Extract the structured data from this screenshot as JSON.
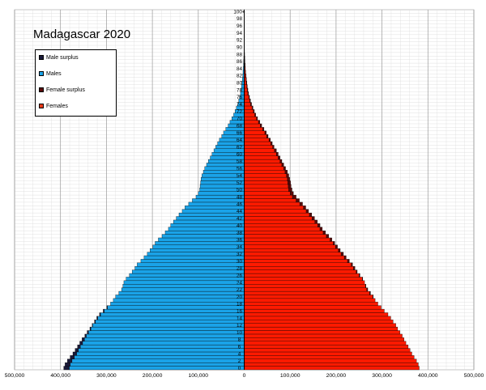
{
  "chart_data": {
    "type": "bar",
    "orientation": "horizontal-pyramid",
    "title": "Madagascar 2020",
    "x_ticks": [
      "500,000",
      "400,000",
      "300,000",
      "200,000",
      "100,000",
      "0",
      "100,000",
      "200,000",
      "300,000",
      "400,000",
      "500,000"
    ],
    "xlim": [
      -500000,
      500000
    ],
    "y_ticks": [
      "100+",
      "98",
      "96",
      "94",
      "92",
      "90",
      "88",
      "86",
      "84",
      "82",
      "80",
      "78",
      "76",
      "74",
      "72",
      "70",
      "68",
      "66",
      "64",
      "62",
      "60",
      "58",
      "56",
      "54",
      "52",
      "50",
      "48",
      "46",
      "44",
      "42",
      "40",
      "38",
      "36",
      "34",
      "32",
      "30",
      "28",
      "26",
      "24",
      "22",
      "20",
      "18",
      "16",
      "14",
      "12",
      "10",
      "8",
      "6",
      "4",
      "2",
      "0"
    ],
    "legend": [
      {
        "label": "Male surplus",
        "color": "#1a1a3a"
      },
      {
        "label": "Males",
        "color": "#1aa3e8"
      },
      {
        "label": "Female surplus",
        "color": "#5a0a0a"
      },
      {
        "label": "Females",
        "color": "#e83b1a"
      }
    ],
    "grid": true,
    "ages": [
      0,
      1,
      2,
      3,
      4,
      5,
      6,
      7,
      8,
      9,
      10,
      11,
      12,
      13,
      14,
      15,
      16,
      17,
      18,
      19,
      20,
      21,
      22,
      23,
      24,
      25,
      26,
      27,
      28,
      29,
      30,
      31,
      32,
      33,
      34,
      35,
      36,
      37,
      38,
      39,
      40,
      41,
      42,
      43,
      44,
      45,
      46,
      47,
      48,
      49,
      50,
      51,
      52,
      53,
      54,
      55,
      56,
      57,
      58,
      59,
      60,
      61,
      62,
      63,
      64,
      65,
      66,
      67,
      68,
      69,
      70,
      71,
      72,
      73,
      74,
      75,
      76,
      77,
      78,
      79,
      80,
      81,
      82,
      83,
      84,
      85,
      86,
      87,
      88,
      89,
      90,
      91,
      92,
      93,
      94,
      95,
      96,
      97,
      98,
      99,
      100
    ],
    "series": [
      {
        "name": "Males",
        "values": [
          393000,
          390000,
          385000,
          379000,
          373000,
          368000,
          363000,
          358000,
          353000,
          347000,
          342000,
          336000,
          331000,
          326000,
          321000,
          315000,
          307000,
          299000,
          291000,
          285000,
          280000,
          273000,
          267000,
          264000,
          262000,
          257000,
          250000,
          244000,
          238000,
          233000,
          225000,
          218000,
          211000,
          205000,
          199000,
          194000,
          187000,
          179000,
          172000,
          165000,
          160000,
          154000,
          148000,
          142000,
          135000,
          129000,
          121000,
          113000,
          105000,
          100000,
          97000,
          96000,
          95000,
          94000,
          92000,
          89000,
          86000,
          82000,
          78000,
          74000,
          70000,
          66000,
          62000,
          58000,
          54000,
          49000,
          45000,
          40000,
          35000,
          31000,
          27000,
          23000,
          20000,
          17000,
          14000,
          12000,
          10000,
          8000,
          7000,
          6000,
          5000,
          4000,
          3200,
          2600,
          2000,
          1600,
          1200,
          900,
          700,
          500,
          350,
          250,
          170,
          110,
          70,
          45,
          30,
          20,
          12,
          8,
          5
        ]
      },
      {
        "name": "Females",
        "values": [
          381000,
          379000,
          375000,
          370000,
          365000,
          361000,
          357000,
          352000,
          348000,
          344000,
          339000,
          334000,
          330000,
          324000,
          319000,
          313000,
          305000,
          298000,
          291000,
          285000,
          281000,
          275000,
          269000,
          265000,
          262000,
          258000,
          252000,
          246000,
          241000,
          236000,
          229000,
          222000,
          216000,
          209000,
          203000,
          197000,
          191000,
          184000,
          177000,
          170000,
          165000,
          159000,
          153000,
          147000,
          140000,
          134000,
          127000,
          120000,
          113000,
          107000,
          104000,
          102000,
          101000,
          99000,
          97000,
          94000,
          90000,
          86000,
          82000,
          78000,
          74000,
          70000,
          65000,
          61000,
          57000,
          52000,
          48000,
          43000,
          38000,
          34000,
          29000,
          25000,
          22000,
          19000,
          16000,
          13500,
          11500,
          9500,
          8000,
          6800,
          5800,
          4800,
          3900,
          3100,
          2500,
          2000,
          1500,
          1100,
          850,
          620,
          450,
          320,
          220,
          150,
          100,
          60,
          40,
          25,
          15,
          10,
          6
        ]
      }
    ]
  }
}
